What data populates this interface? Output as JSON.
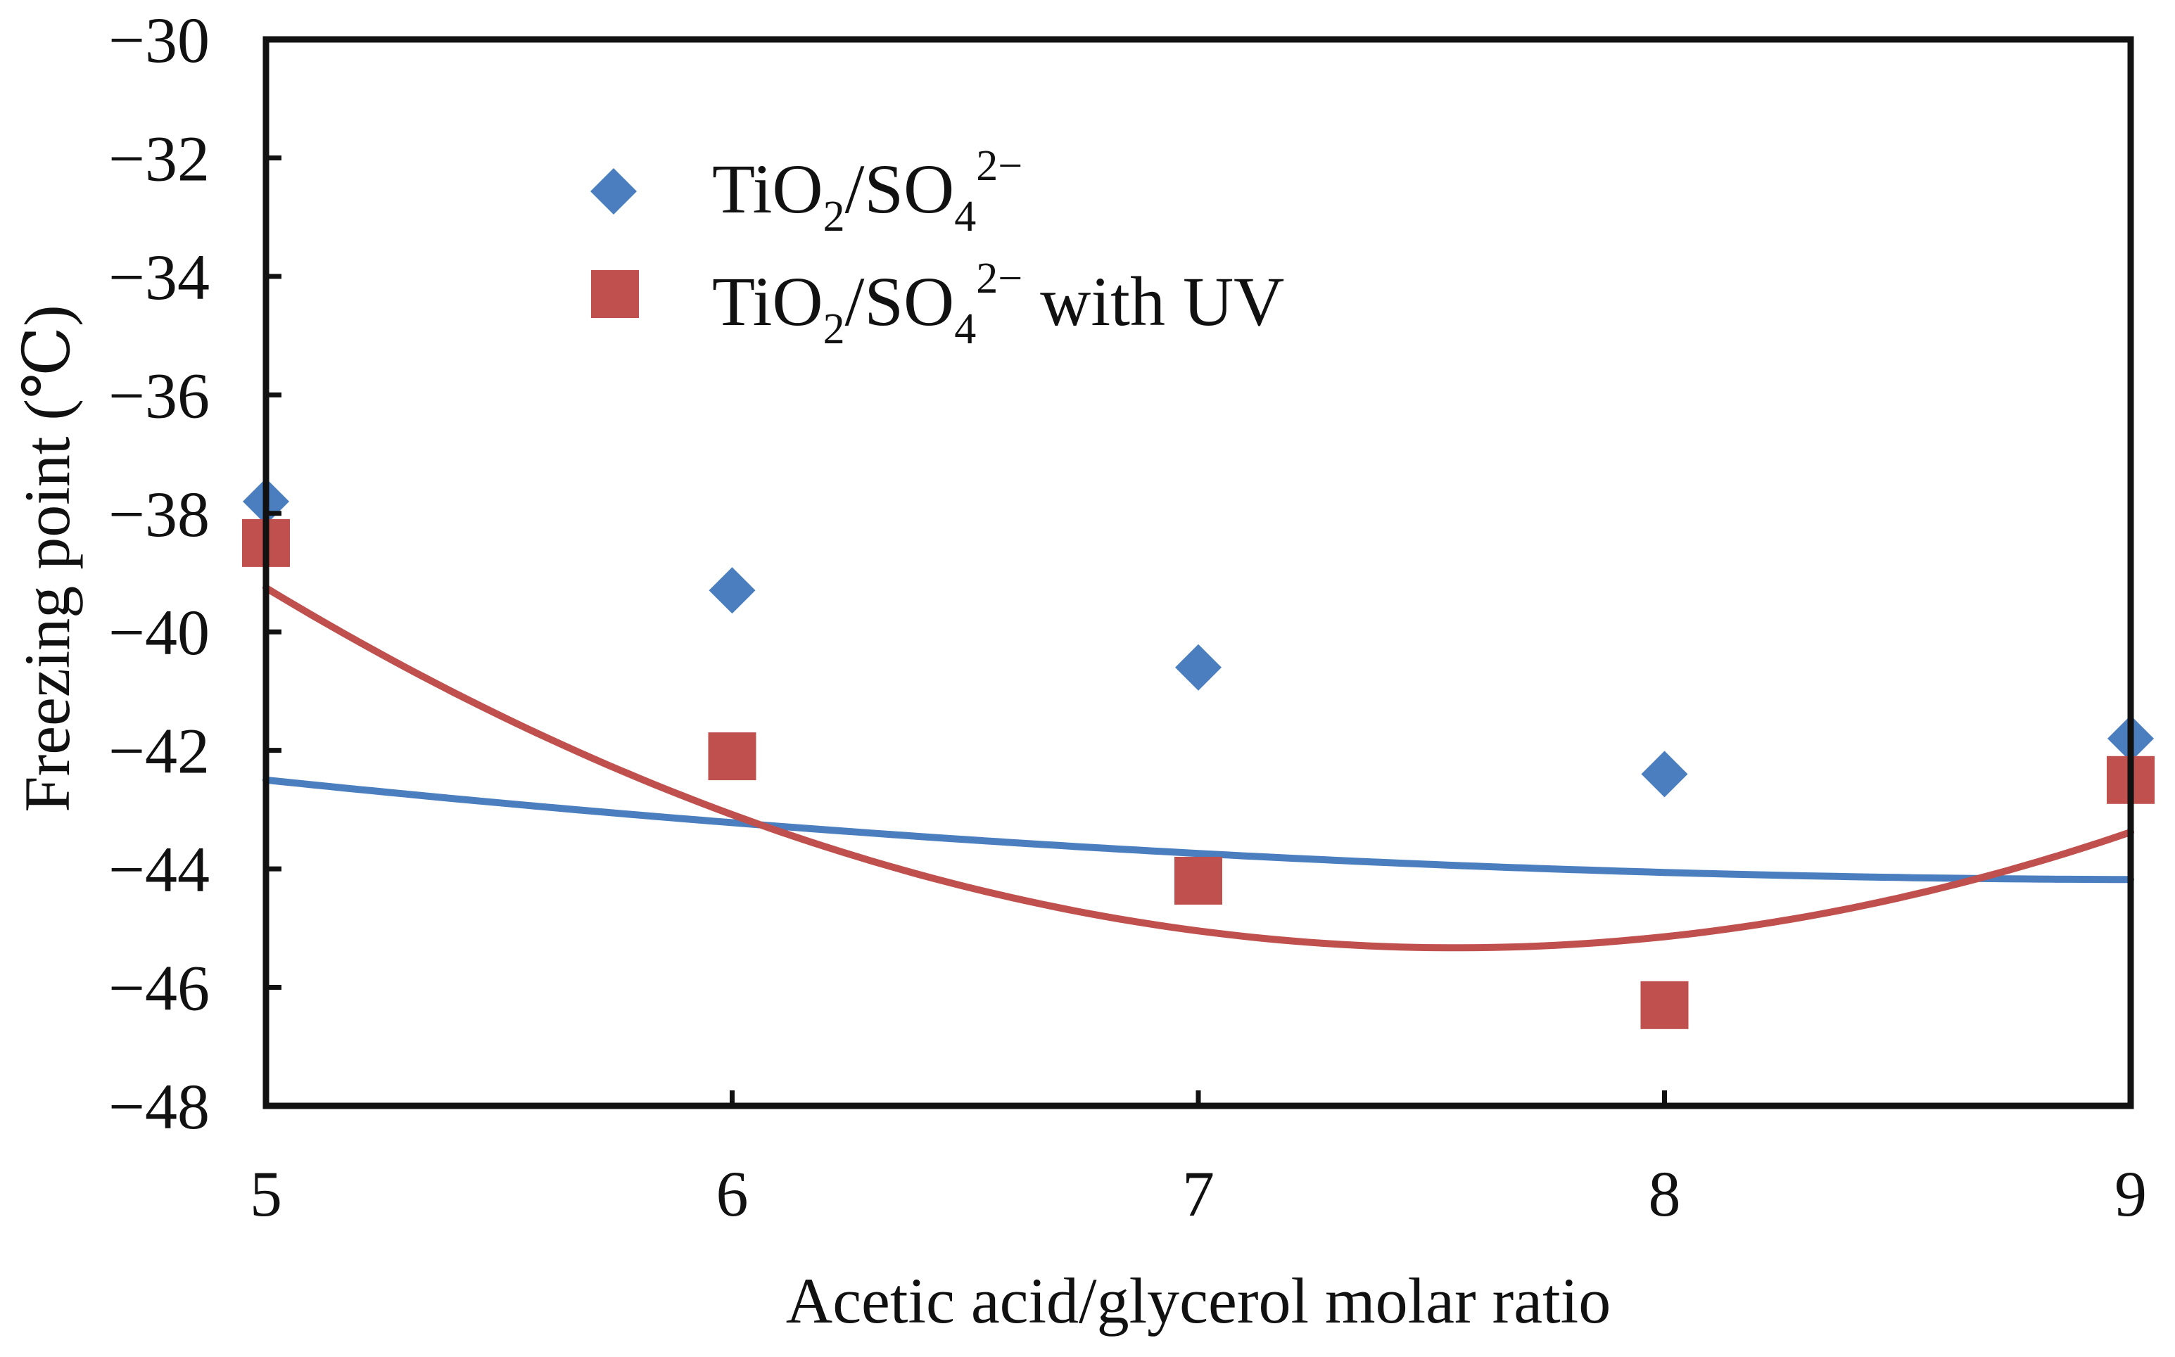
{
  "chart_data": {
    "type": "scatter",
    "title": "",
    "xlabel": "Acetic acid/glycerol molar ratio",
    "ylabel": "Freezing point (℃)",
    "xlim": [
      5,
      9
    ],
    "ylim": [
      -48,
      -30
    ],
    "x_ticks": [
      "5",
      "6",
      "7",
      "8",
      "9"
    ],
    "y_ticks": [
      "−30",
      "−32",
      "−34",
      "−36",
      "−38",
      "−40",
      "−42",
      "−44",
      "−46",
      "−48"
    ],
    "grid": false,
    "legend_position": "top-left",
    "series": [
      {
        "name": "TiO2/SO4 2−",
        "legend": {
          "base1": "TiO",
          "sub1": "2",
          "base2": "/SO",
          "sub2": "4",
          "sup": "2−",
          "suffix": ""
        },
        "marker": "diamond",
        "color": "#4a7ebf",
        "x": [
          5,
          6,
          7,
          8,
          9
        ],
        "y": [
          -37.8,
          -39.3,
          -40.6,
          -42.4,
          -41.8
        ],
        "trend_coefficients": [
          0.1,
          -1.82,
          -35.9
        ]
      },
      {
        "name": "TiO2/SO4 2− with UV",
        "legend": {
          "base1": "TiO",
          "sub1": "2",
          "base2": "/SO",
          "sub2": "4",
          "sup": "2−",
          "suffix": " with UV"
        },
        "marker": "square",
        "color": "#c0504d",
        "x": [
          5,
          6,
          7,
          8,
          9
        ],
        "y": [
          -38.5,
          -42.1,
          -44.2,
          -46.3,
          -42.5
        ],
        "trend_coefficients": [
          0.9321,
          -14.08,
          7.84
        ]
      }
    ]
  }
}
